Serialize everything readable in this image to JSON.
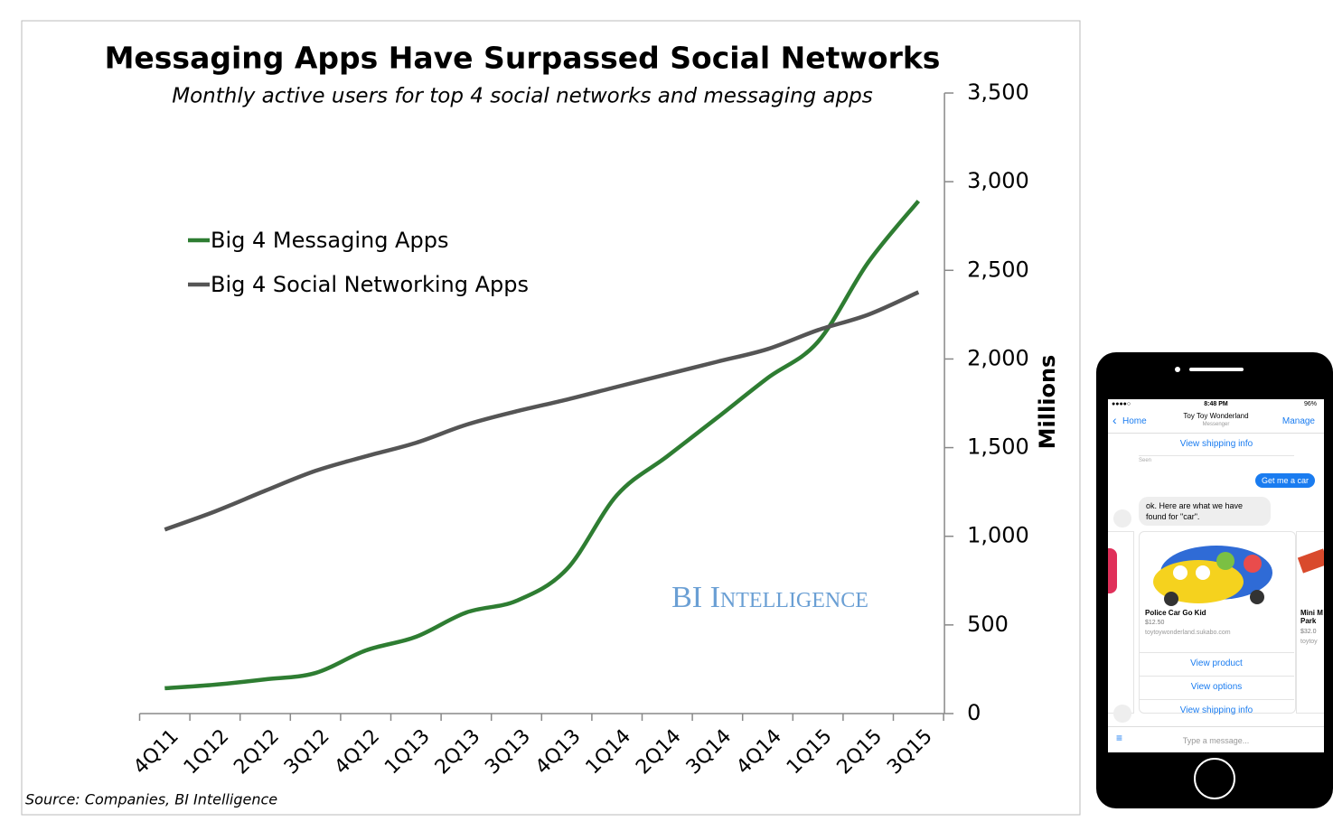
{
  "chart_data": {
    "type": "line",
    "title": "Messaging Apps Have Surpassed Social Networks",
    "subtitle": "Monthly active users for top 4 social networks and messaging apps",
    "y_axis_label": "Millions",
    "source": "Source: Companies, BI Intelligence",
    "watermark": "BI Intelligence",
    "categories": [
      "4Q11",
      "1Q12",
      "2Q12",
      "3Q12",
      "4Q12",
      "1Q13",
      "2Q13",
      "3Q13",
      "4Q13",
      "1Q14",
      "2Q14",
      "3Q14",
      "4Q14",
      "1Q15",
      "2Q15",
      "3Q15"
    ],
    "series": [
      {
        "name": "Big 4 Messaging Apps",
        "color": "#2e7d32",
        "values": [
          143,
          163,
          193,
          229,
          356,
          433,
          570,
          636,
          814,
          1232,
          1451,
          1670,
          1893,
          2097,
          2545,
          2891
        ]
      },
      {
        "name": "Big 4 Social Networking Apps",
        "color": "#555555",
        "values": [
          1038,
          1140,
          1257,
          1369,
          1451,
          1527,
          1629,
          1705,
          1771,
          1843,
          1914,
          1985,
          2056,
          2163,
          2250,
          2377
        ]
      }
    ],
    "ylim": [
      0,
      3500
    ],
    "yticks": [
      0,
      500,
      {
        "value": 1000,
        "label": "1,000"
      },
      {
        "value": 1500,
        "label": "1,500"
      },
      {
        "value": 2000,
        "label": "2,000"
      },
      {
        "value": 2500,
        "label": "2,500"
      },
      {
        "value": 3000,
        "label": "3,000"
      },
      {
        "value": 3500,
        "label": "3,500"
      }
    ],
    "y_axis_side": "right",
    "grid": false,
    "legend": "upper-left"
  },
  "phone": {
    "status_time": "8:48 PM",
    "battery": "96%",
    "back": "Home",
    "contact": "Toy Toy Wonderland",
    "contact_sub": "Messenger",
    "manage": "Manage",
    "top_button": "View shipping info",
    "seen": "Seen",
    "user_message": "Get me a car",
    "bot_message": "ok.  Here are what we have found for \"car\".",
    "card": {
      "title": "Police Car Go Kid",
      "price": "$12.50",
      "site": "toytoywonderland.sukabo.com",
      "buttons": [
        "View product",
        "View options",
        "View shipping info"
      ]
    },
    "next_card": {
      "title": "Mini M Park",
      "price": "$32.0",
      "site": "toytoy"
    },
    "input_placeholder": "Type a message..."
  }
}
